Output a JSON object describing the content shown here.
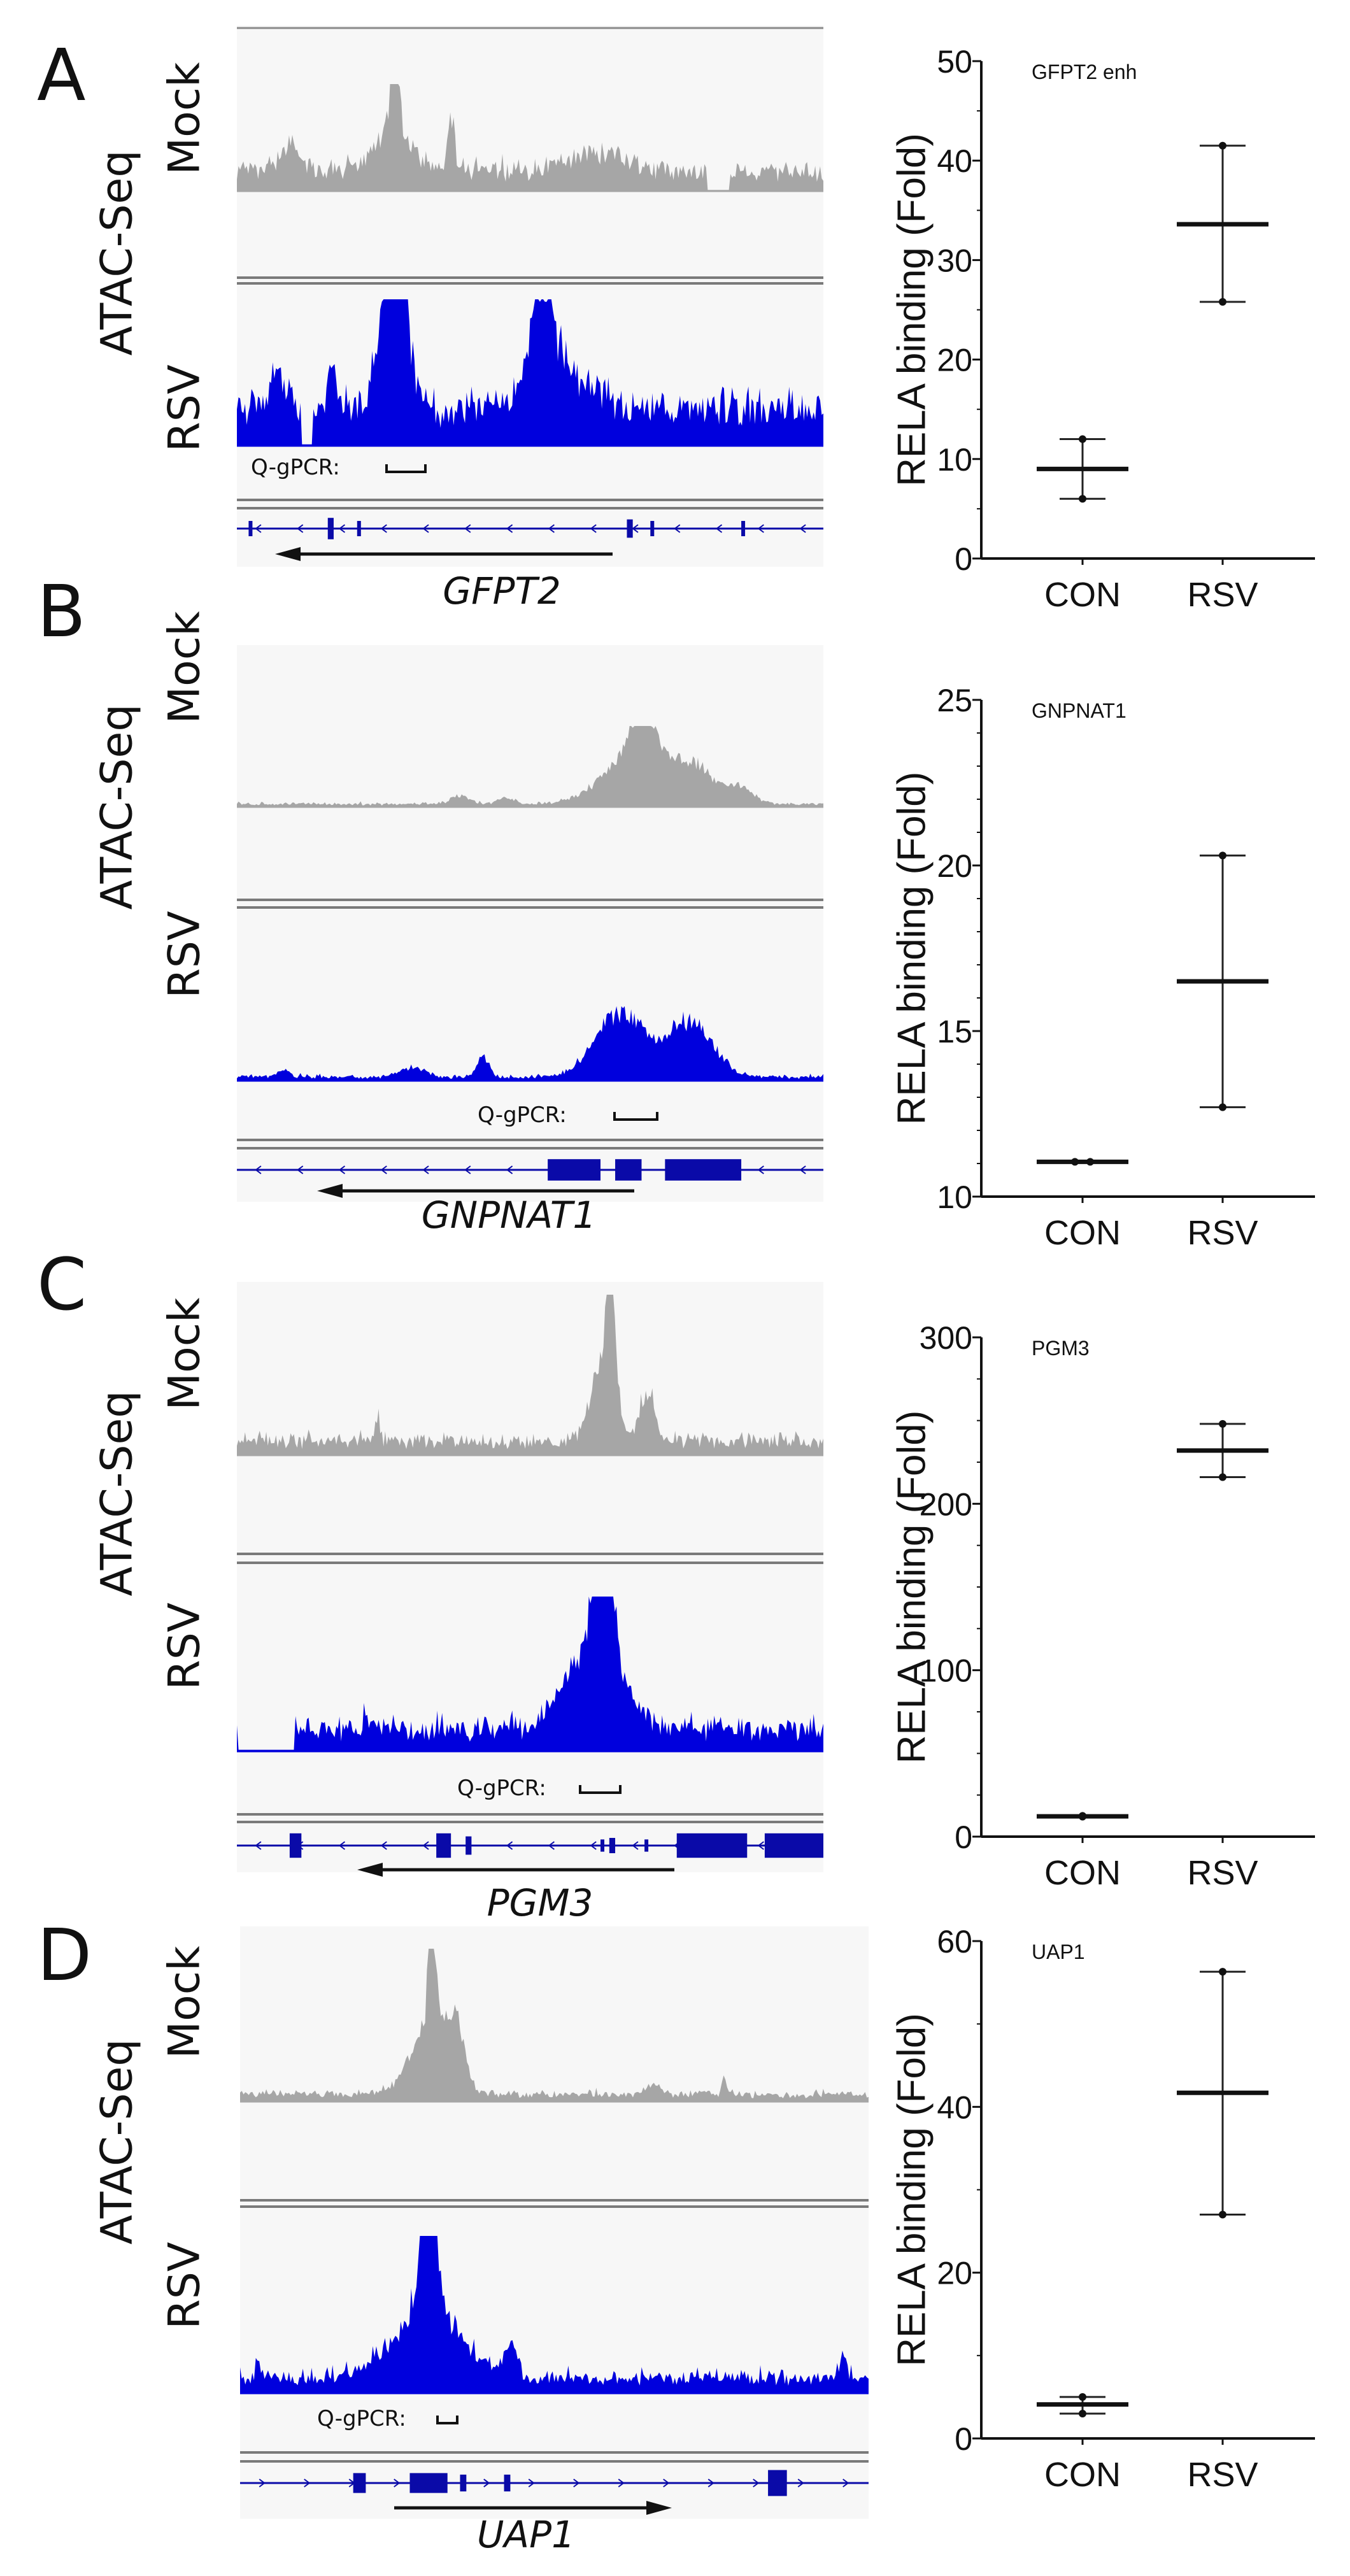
{
  "panels": [
    {
      "letter": "A",
      "assay_label": "ATAC-Seq",
      "track_labels": [
        "Mock",
        "RSV"
      ],
      "qpcr_label": "Q-gPCR:",
      "gene": "GFPT2",
      "gene_direction": "left"
    },
    {
      "letter": "B",
      "assay_label": "ATAC-Seq",
      "track_labels": [
        "Mock",
        "RSV"
      ],
      "qpcr_label": "Q-gPCR:",
      "gene": "GNPNAT1",
      "gene_direction": "left"
    },
    {
      "letter": "C",
      "assay_label": "ATAC-Seq",
      "track_labels": [
        "Mock",
        "RSV"
      ],
      "qpcr_label": "Q-gPCR:",
      "gene": "PGM3",
      "gene_direction": "left"
    },
    {
      "letter": "D",
      "assay_label": "ATAC-Seq",
      "track_labels": [
        "Mock",
        "RSV"
      ],
      "qpcr_label": "Q-gPCR:",
      "gene": "UAP1",
      "gene_direction": "right"
    }
  ],
  "colors": {
    "mock": "#a6a6a6",
    "rsv": "#0000dd",
    "track_bg": "#f7f7f7",
    "gene": "#0a0aa8"
  },
  "chart_data": [
    {
      "type": "scatter",
      "title": "GFPT2 enh",
      "ylabel": "RELA binding (Fold)",
      "categories": [
        "CON",
        "RSV"
      ],
      "ylim": [
        0,
        50
      ],
      "yticks": [
        "0",
        "10",
        "20",
        "30",
        "40",
        "50"
      ],
      "minor_step": 5,
      "series": [
        {
          "name": "CON",
          "points": [
            12,
            6
          ],
          "mean": 9
        },
        {
          "name": "RSV",
          "points": [
            41.5,
            25.8
          ],
          "mean": 33.6
        }
      ]
    },
    {
      "type": "scatter",
      "title": "GNPNAT1",
      "ylabel": "RELA binding (Fold)",
      "categories": [
        "CON",
        "RSV"
      ],
      "ylim": [
        10,
        25
      ],
      "yticks": [
        "10",
        "15",
        "20",
        "25"
      ],
      "minor_step": 1,
      "series": [
        {
          "name": "CON",
          "points": [
            11.05,
            11.05
          ],
          "mean": 11.05
        },
        {
          "name": "RSV",
          "points": [
            20.3,
            12.7
          ],
          "mean": 16.5
        }
      ]
    },
    {
      "type": "scatter",
      "title": "PGM3",
      "ylabel": "RELA binding (Fold)",
      "categories": [
        "CON",
        "RSV"
      ],
      "ylim": [
        0,
        300
      ],
      "yticks": [
        "0",
        "100",
        "200",
        "300"
      ],
      "minor_step": 25,
      "series": [
        {
          "name": "CON",
          "points": [
            12.5,
            12
          ],
          "mean": 12.2
        },
        {
          "name": "RSV",
          "points": [
            248,
            216
          ],
          "mean": 232
        }
      ]
    },
    {
      "type": "scatter",
      "title": "UAP1",
      "ylabel": "RELA binding (Fold)",
      "categories": [
        "CON",
        "RSV"
      ],
      "ylim": [
        0,
        60
      ],
      "yticks": [
        "0",
        "20",
        "40",
        "60"
      ],
      "minor_step": 10,
      "series": [
        {
          "name": "CON",
          "points": [
            5,
            3
          ],
          "mean": 4.1
        },
        {
          "name": "RSV",
          "points": [
            56.3,
            27
          ],
          "mean": 41.7
        }
      ]
    }
  ]
}
